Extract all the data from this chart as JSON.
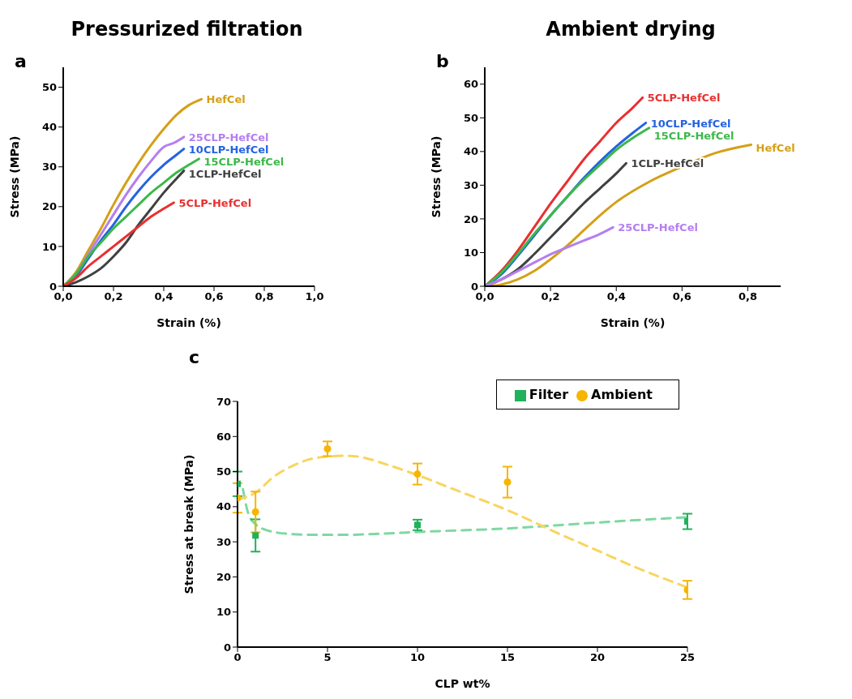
{
  "chart_data": [
    {
      "type": "line",
      "title": "Pressurized filtration",
      "annotations": [
        "a"
      ],
      "xlabel": "Strain (%)",
      "ylabel": "Stress (MPa)",
      "xlim": [
        0,
        1
      ],
      "xticks": [
        {
          "value": 0,
          "label": "0,0"
        },
        {
          "value": 0.2,
          "label": "0,2"
        },
        {
          "value": 0.4,
          "label": "0,4"
        },
        {
          "value": 0.6,
          "label": "0,6"
        },
        {
          "value": 0.8,
          "label": "0,8"
        },
        {
          "value": 1,
          "label": "1,0"
        }
      ],
      "ylim": [
        0,
        55
      ],
      "yticks": [
        0,
        10,
        20,
        30,
        40,
        50
      ],
      "marker": "none",
      "legend": false,
      "series": [
        {
          "name": "HefCel",
          "color": "#d4a017",
          "x": [
            0,
            0.05,
            0.1,
            0.15,
            0.2,
            0.25,
            0.3,
            0.35,
            0.4,
            0.45,
            0.5,
            0.55
          ],
          "values": [
            0,
            3.5,
            9,
            14.5,
            20.5,
            26,
            31,
            35.5,
            39.5,
            43,
            45.5,
            47
          ]
        },
        {
          "name": "25CLP-HefCel",
          "color": "#b57ef0",
          "x": [
            0,
            0.05,
            0.1,
            0.15,
            0.2,
            0.25,
            0.3,
            0.35,
            0.4,
            0.44,
            0.48
          ],
          "values": [
            0,
            3,
            8,
            13,
            18,
            23,
            27.5,
            31.5,
            35,
            36,
            37.5
          ]
        },
        {
          "name": "10CLP-HefCel",
          "color": "#2463e0",
          "x": [
            0,
            0.05,
            0.1,
            0.15,
            0.2,
            0.25,
            0.3,
            0.35,
            0.4,
            0.45,
            0.48
          ],
          "values": [
            0,
            2.5,
            7,
            11.5,
            15.5,
            20,
            24,
            27.5,
            30.5,
            33,
            34.5
          ]
        },
        {
          "name": "15CLP-HefCel",
          "color": "#3cb84a",
          "x": [
            0,
            0.05,
            0.1,
            0.15,
            0.2,
            0.25,
            0.3,
            0.35,
            0.4,
            0.45,
            0.5,
            0.54
          ],
          "values": [
            0,
            3,
            7.5,
            11,
            14.5,
            17.5,
            20.5,
            23.5,
            26,
            28.5,
            30.5,
            32
          ]
        },
        {
          "name": "1CLP-HefCel",
          "color": "#404040",
          "x": [
            0,
            0.05,
            0.1,
            0.15,
            0.2,
            0.25,
            0.3,
            0.35,
            0.4,
            0.45,
            0.48
          ],
          "values": [
            0,
            1,
            2.5,
            4.5,
            7.5,
            11,
            15.5,
            19.5,
            23.5,
            27,
            29
          ]
        },
        {
          "name": "5CLP-HefCel",
          "color": "#e83030",
          "x": [
            0,
            0.05,
            0.1,
            0.15,
            0.2,
            0.25,
            0.3,
            0.35,
            0.4,
            0.44
          ],
          "values": [
            0,
            2,
            5,
            7.5,
            10,
            12.5,
            15,
            17.5,
            19.5,
            21
          ]
        }
      ]
    },
    {
      "type": "line",
      "title": "Ambient drying",
      "annotations": [
        "b"
      ],
      "xlabel": "Strain (%)",
      "ylabel": "Stress (MPa)",
      "xlim": [
        0,
        0.9
      ],
      "xticks": [
        {
          "value": 0,
          "label": "0,0"
        },
        {
          "value": 0.2,
          "label": "0,2"
        },
        {
          "value": 0.4,
          "label": "0,4"
        },
        {
          "value": 0.6,
          "label": "0,6"
        },
        {
          "value": 0.8,
          "label": "0,8"
        }
      ],
      "ylim": [
        0,
        65
      ],
      "yticks": [
        0,
        10,
        20,
        30,
        40,
        50,
        60
      ],
      "marker": "none",
      "legend": false,
      "series": [
        {
          "name": "5CLP-HefCel",
          "color": "#e83030",
          "x": [
            0,
            0.05,
            0.1,
            0.15,
            0.2,
            0.25,
            0.3,
            0.35,
            0.4,
            0.45,
            0.48
          ],
          "values": [
            0,
            4.5,
            10.5,
            17.5,
            24.5,
            31,
            37.5,
            43,
            48.5,
            53,
            56
          ]
        },
        {
          "name": "10CLP-HefCel",
          "color": "#2463e0",
          "x": [
            0,
            0.05,
            0.1,
            0.15,
            0.2,
            0.25,
            0.3,
            0.35,
            0.4,
            0.45,
            0.49
          ],
          "values": [
            0,
            3.5,
            9,
            15,
            21,
            26.5,
            32,
            37,
            41.5,
            45.5,
            48.5
          ]
        },
        {
          "name": "15CLP-HefCel",
          "color": "#3cb84a",
          "x": [
            0,
            0.05,
            0.1,
            0.15,
            0.2,
            0.25,
            0.3,
            0.35,
            0.4,
            0.45,
            0.5
          ],
          "values": [
            0,
            4,
            9.5,
            15.5,
            21,
            26.5,
            31.5,
            36,
            40.5,
            44,
            47
          ]
        },
        {
          "name": "HefCel",
          "color": "#d4a017",
          "x": [
            0,
            0.05,
            0.1,
            0.15,
            0.2,
            0.25,
            0.3,
            0.35,
            0.4,
            0.5,
            0.6,
            0.7,
            0.81
          ],
          "values": [
            0,
            0.5,
            2,
            4.5,
            8,
            12,
            16.5,
            21,
            25,
            31,
            35.5,
            39.5,
            42
          ]
        },
        {
          "name": "1CLP-HefCel",
          "color": "#404040",
          "x": [
            0,
            0.05,
            0.1,
            0.15,
            0.2,
            0.25,
            0.3,
            0.35,
            0.4,
            0.43
          ],
          "values": [
            0,
            2,
            5,
            9.5,
            14.5,
            19.5,
            24.5,
            29,
            33.5,
            36.5
          ]
        },
        {
          "name": "25CLP-HefCel",
          "color": "#b57ef0",
          "x": [
            0,
            0.05,
            0.1,
            0.15,
            0.2,
            0.25,
            0.3,
            0.35,
            0.39
          ],
          "values": [
            0,
            2,
            4.5,
            7,
            9.5,
            11.5,
            13.5,
            15.5,
            17.5
          ]
        }
      ]
    },
    {
      "type": "scatter",
      "annotations": [
        "c"
      ],
      "xlabel": "CLP wt%",
      "ylabel": "Stress at break (MPa)",
      "xlim": [
        0,
        25
      ],
      "xticks": [
        0,
        5,
        10,
        15,
        20,
        25
      ],
      "ylim": [
        0,
        70
      ],
      "yticks": [
        0,
        10,
        20,
        30,
        40,
        50,
        60,
        70
      ],
      "legend": "top right",
      "series": [
        {
          "type": "line",
          "line_style": "dashed",
          "marker": "none",
          "color": "#7fd8a2",
          "x": [
            0.3,
            0.6,
            1,
            1.5,
            2,
            3,
            4,
            6,
            8,
            10,
            15,
            20,
            25
          ],
          "values": [
            45,
            38,
            35,
            33.5,
            32.8,
            32.2,
            32,
            32,
            32.3,
            32.8,
            33.8,
            35.5,
            37
          ]
        },
        {
          "type": "line",
          "line_style": "dashed",
          "marker": "none",
          "color": "#f8d55e",
          "x": [
            0,
            1,
            2,
            3,
            4,
            5,
            6,
            7,
            8,
            10,
            12,
            15,
            18,
            20,
            22,
            25
          ],
          "values": [
            42,
            44,
            48.5,
            51.5,
            53.5,
            54.3,
            54.5,
            54,
            52.5,
            49,
            45,
            39,
            32,
            27.5,
            23,
            17
          ]
        },
        {
          "name": "Filter",
          "type": "scatter",
          "marker": "square",
          "color": "#1fb25a",
          "x": [
            0,
            1,
            10,
            25
          ],
          "values": [
            46.5,
            31.8,
            34.8,
            35.8
          ],
          "errors": [
            3.5,
            4.6,
            1.5,
            2.2
          ]
        },
        {
          "name": "Ambient",
          "type": "scatter",
          "marker": "circle",
          "color": "#f7b500",
          "x": [
            0,
            1,
            5,
            10,
            15,
            25
          ],
          "values": [
            42.5,
            38.5,
            56.5,
            49.3,
            47,
            16.3
          ],
          "errors": [
            4.2,
            5.8,
            2.1,
            3,
            4.4,
            2.6
          ]
        }
      ]
    }
  ]
}
